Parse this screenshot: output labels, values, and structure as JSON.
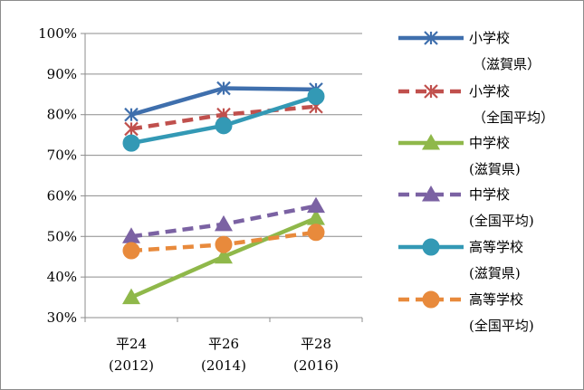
{
  "chart_data": {
    "type": "line",
    "categories": [
      [
        "平24",
        "(2012)"
      ],
      [
        "平26",
        "(2014)"
      ],
      [
        "平28",
        "(2016)"
      ]
    ],
    "ylim": [
      0.3,
      1.0
    ],
    "yticks": [
      "30%",
      "40%",
      "50%",
      "60%",
      "70%",
      "80%",
      "90%",
      "100%"
    ],
    "grid": true,
    "legend_position": "right",
    "series": [
      {
        "name": [
          "小学校",
          "（滋賀県）"
        ],
        "values": [
          0.8,
          0.865,
          0.862
        ],
        "color": "#3f6fad",
        "dash": "solid",
        "marker": "asterisk"
      },
      {
        "name": [
          "小学校",
          "（全国平均）"
        ],
        "values": [
          0.765,
          0.8,
          0.82
        ],
        "color": "#c0504d",
        "dash": "dashed",
        "marker": "asterisk"
      },
      {
        "name": [
          "中学校",
          "(滋賀県)"
        ],
        "values": [
          0.35,
          0.45,
          0.545
        ],
        "color": "#8fb84a",
        "dash": "solid",
        "marker": "triangle"
      },
      {
        "name": [
          "中学校",
          "(全国平均)"
        ],
        "values": [
          0.5,
          0.53,
          0.575
        ],
        "color": "#7b62a3",
        "dash": "dashed",
        "marker": "triangle"
      },
      {
        "name": [
          "高等学校",
          "(滋賀県)"
        ],
        "values": [
          0.73,
          0.773,
          0.845
        ],
        "color": "#3399b5",
        "dash": "solid",
        "marker": "circle"
      },
      {
        "name": [
          "高等学校",
          "(全国平均)"
        ],
        "values": [
          0.465,
          0.48,
          0.51
        ],
        "color": "#e88a3c",
        "dash": "dashed",
        "marker": "circle"
      }
    ]
  }
}
